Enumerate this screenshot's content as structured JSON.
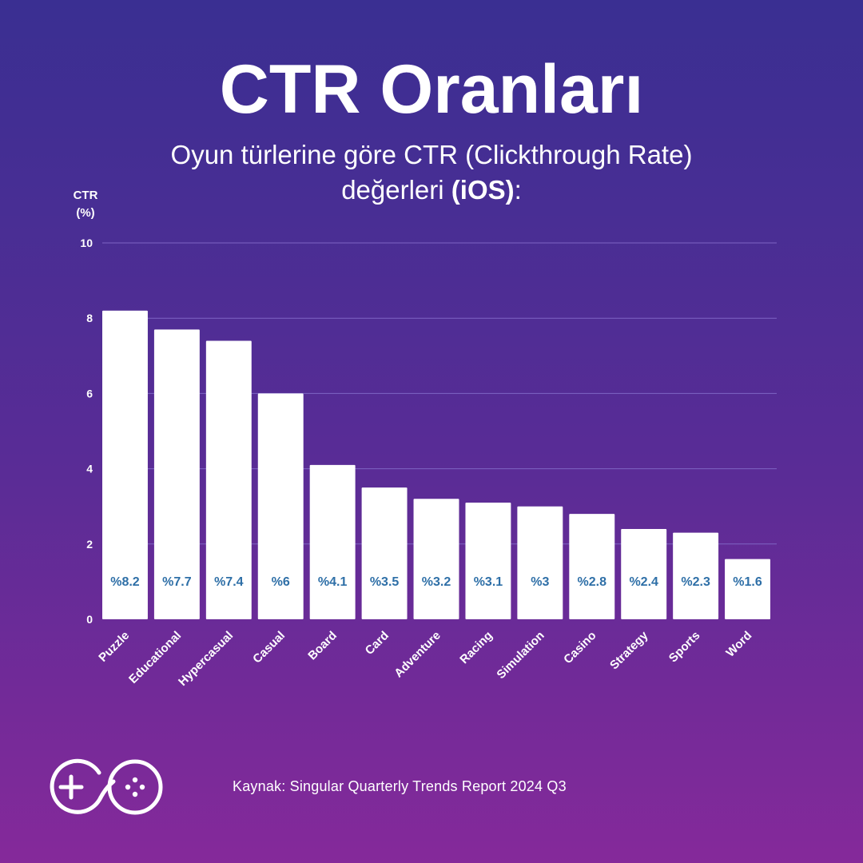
{
  "header": {
    "title": "CTR Oranları",
    "subtitle_line1": "Oyun türlerine göre CTR (Clickthrough Rate)",
    "subtitle_line2_prefix": "değerleri ",
    "subtitle_line2_bold": "(iOS)",
    "subtitle_line2_suffix": ":"
  },
  "chart_data": {
    "type": "bar",
    "title": "CTR Oranları",
    "ylabel_line1": "CTR",
    "ylabel_line2": "(%)",
    "xlabel": "",
    "ylim": [
      0,
      10
    ],
    "yticks": [
      0,
      2,
      4,
      6,
      8,
      10
    ],
    "grid": true,
    "categories": [
      "Puzzle",
      "Educational",
      "Hypercasual",
      "Casual",
      "Board",
      "Card",
      "Adventure",
      "Racing",
      "Simulation",
      "Casino",
      "Strategy",
      "Sports",
      "Word"
    ],
    "values": [
      8.2,
      7.7,
      7.4,
      6,
      4.1,
      3.5,
      3.2,
      3.1,
      3,
      2.8,
      2.4,
      2.3,
      1.6
    ],
    "data_labels": [
      "%8.2",
      "%7.7",
      "%7.4",
      "%6",
      "%4.1",
      "%3.5",
      "%3.2",
      "%3.1",
      "%3",
      "%2.8",
      "%2.4",
      "%2.3",
      "%1.6"
    ],
    "colors": {
      "bar": "#ffffff",
      "label": "#2e6fa7",
      "grid": "#7e64c4"
    }
  },
  "footer": {
    "source": "Kaynak: Singular Quarterly Trends Report 2024 Q3",
    "logo_icon": "g-gamepad-logo-icon"
  }
}
